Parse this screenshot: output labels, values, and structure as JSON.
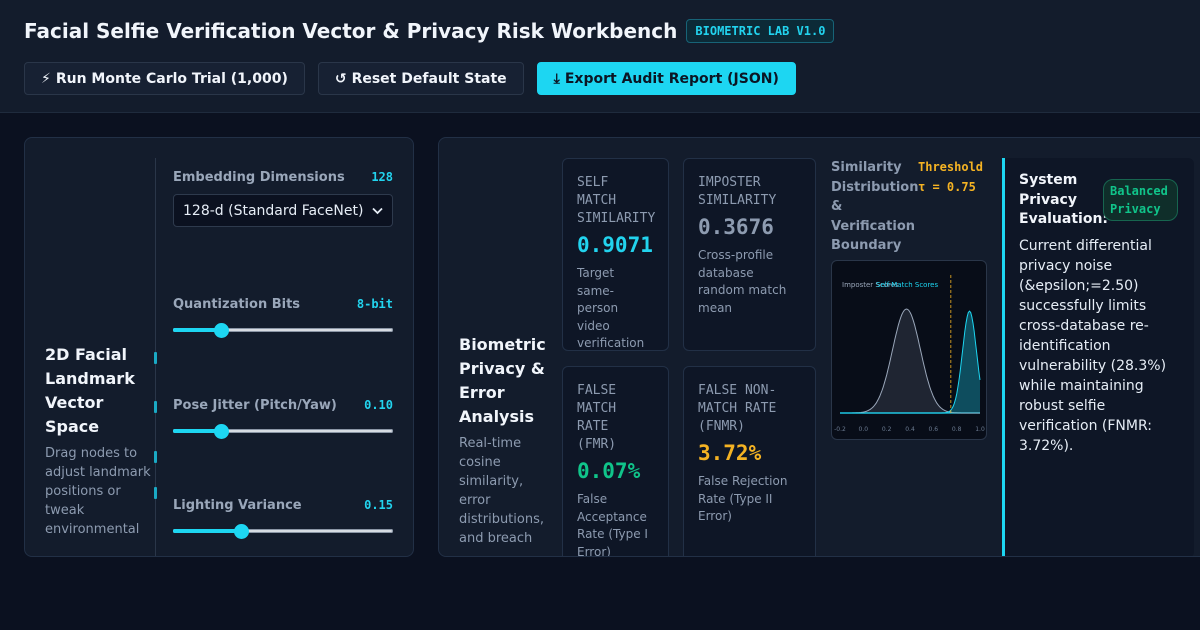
{
  "header": {
    "title": "Facial Selfie Verification Vector & Privacy Risk Workbench",
    "badge": "BIOMETRIC LAB V1.0"
  },
  "toolbar": {
    "run_icon": "⚡",
    "run_label": "Run Monte Carlo Trial (1,000)",
    "reset_icon": "↺",
    "reset_label": "Reset Default State",
    "export_icon": "⤓",
    "export_label": "Export Audit Report (JSON)"
  },
  "vector_space": {
    "title": "2D Facial Landmark Vector Space",
    "description": "Drag nodes to adjust landmark positions or tweak environmental"
  },
  "controls": {
    "embedding": {
      "label": "Embedding Dimensions",
      "value": "128",
      "selected": "128-d (Standard FaceNet)"
    },
    "quantization": {
      "label": "Quantization Bits",
      "value": "8-bit",
      "fraction": 0.22
    },
    "pose_jitter": {
      "label": "Pose Jitter (Pitch/Yaw)",
      "value": "0.10",
      "fraction": 0.22
    },
    "lighting": {
      "label": "Lighting Variance",
      "value": "0.15",
      "fraction": 0.31
    }
  },
  "analysis": {
    "title": "Biometric Privacy & Error Analysis",
    "description": "Real-time cosine similarity, error distributions, and breach"
  },
  "metrics": {
    "self_match": {
      "label": "SELF MATCH SIMILARITY",
      "value": "0.9071",
      "sub": "Target same-person video verification match",
      "color": "#22d3ee"
    },
    "imposter": {
      "label": "IMPOSTER SIMILARITY",
      "value": "0.3676",
      "sub": "Cross-profile database random match mean",
      "color": "#8d9bb0"
    },
    "fmr": {
      "label": "FALSE MATCH RATE (FMR)",
      "value": "0.07%",
      "sub": "False Acceptance Rate (Type I Error)",
      "color": "#10c48a"
    },
    "fnmr": {
      "label": "FALSE NON-MATCH RATE (FNMR)",
      "value": "3.72%",
      "sub": "False Rejection Rate (Type II Error)",
      "color": "#f5b323"
    }
  },
  "distribution": {
    "title": "Similarity Distribution & Verification Boundary",
    "threshold": "Threshold τ = 0.75",
    "legend_imposter": "Imposter Scores",
    "legend_genuine": "Self-Match Scores",
    "x_ticks": [
      "-0.2",
      "0.0",
      "0.2",
      "0.4",
      "0.6",
      "0.8",
      "1.0"
    ]
  },
  "chart_data": {
    "type": "area",
    "xlim": [
      -0.2,
      1.0
    ],
    "threshold": 0.75,
    "series": [
      {
        "name": "Imposter Scores",
        "distribution": "gaussian",
        "mean": 0.37,
        "sd": 0.12,
        "color": "#9aa7ba"
      },
      {
        "name": "Self-Match Scores",
        "distribution": "gaussian",
        "mean": 0.91,
        "sd": 0.06,
        "color": "#1dd6f2"
      }
    ]
  },
  "evaluation": {
    "title": "System Privacy Evaluation:",
    "badge": "Balanced Privacy",
    "text": "Current differential privacy noise (&epsilon;=2.50) successfully limits cross-database re-identification vulnerability (28.3%) while maintaining robust selfie verification (FNMR: 3.72%)."
  }
}
